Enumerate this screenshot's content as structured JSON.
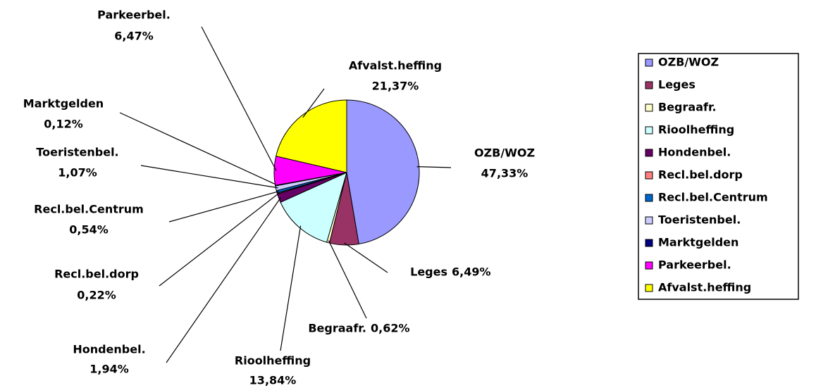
{
  "chart_data": {
    "type": "pie",
    "categories": [
      "OZB/WOZ",
      "Leges",
      "Begraafr.",
      "Rioolheffing",
      "Hondenbel.",
      "Recl.bel.dorp",
      "Recl.bel.Centrum",
      "Toeristenbel.",
      "Marktgelden",
      "Parkeerbel.",
      "Afvalst.heffing"
    ],
    "values": [
      47.33,
      6.49,
      0.62,
      13.84,
      1.94,
      0.22,
      0.54,
      1.07,
      0.12,
      6.47,
      21.37
    ],
    "value_labels": [
      "47,33%",
      "6,49%",
      "0,62%",
      "13,84%",
      "1,94%",
      "0,22%",
      "0,54%",
      "1,07%",
      "0,12%",
      "6,47%",
      "21,37%"
    ],
    "colors": [
      "#9999ff",
      "#993366",
      "#ffffcc",
      "#ccffff",
      "#660066",
      "#ff8080",
      "#0066cc",
      "#ccccff",
      "#000080",
      "#ff00ff",
      "#ffff00"
    ],
    "legend": "right"
  }
}
